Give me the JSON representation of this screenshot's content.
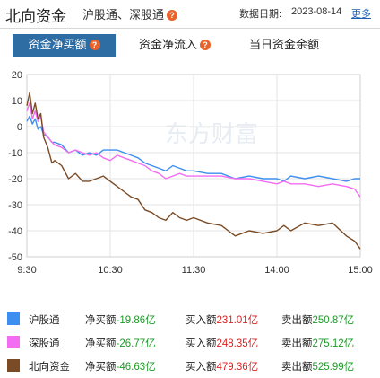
{
  "header": {
    "title": "北向资金",
    "subtitle": "沪股通、深股通",
    "help_glyph": "?",
    "date_label": "数据日期:",
    "date_value": "2023-08-14",
    "more_label": "更多"
  },
  "tabs": [
    {
      "label": "资金净买额",
      "active": true,
      "has_help": true
    },
    {
      "label": "资金净流入",
      "active": false,
      "has_help": true
    },
    {
      "label": "当日资金余额",
      "active": false,
      "has_help": false
    }
  ],
  "watermark": "东方财富",
  "colors": {
    "sh": "#3c8ef0",
    "sz": "#f26df2",
    "north": "#7a4b25",
    "accent": "#2e6da4"
  },
  "chart_data": {
    "type": "line",
    "x_tick_labels": [
      "9:30",
      "10:30",
      "11:30",
      "14:00",
      "15:00"
    ],
    "x_index_range": [
      0,
      240
    ],
    "x_tick_index": [
      0,
      60,
      120,
      180,
      240
    ],
    "y_ticks": [
      20,
      10,
      0,
      -10,
      -20,
      -30,
      -40,
      -50
    ],
    "ylim": [
      -50,
      20
    ],
    "grid": true,
    "series": [
      {
        "name": "沪股通",
        "color": "#3c8ef0",
        "points": [
          [
            0,
            2
          ],
          [
            2,
            4
          ],
          [
            4,
            1
          ],
          [
            6,
            3
          ],
          [
            8,
            -1
          ],
          [
            10,
            0
          ],
          [
            12,
            -3
          ],
          [
            15,
            -4
          ],
          [
            18,
            -6
          ],
          [
            20,
            -6
          ],
          [
            25,
            -7
          ],
          [
            30,
            -10
          ],
          [
            35,
            -9
          ],
          [
            40,
            -11
          ],
          [
            45,
            -10
          ],
          [
            50,
            -11
          ],
          [
            55,
            -9
          ],
          [
            60,
            -9
          ],
          [
            65,
            -9
          ],
          [
            70,
            -10
          ],
          [
            75,
            -11
          ],
          [
            80,
            -12
          ],
          [
            85,
            -14
          ],
          [
            90,
            -15
          ],
          [
            95,
            -16
          ],
          [
            100,
            -17
          ],
          [
            105,
            -15
          ],
          [
            110,
            -16
          ],
          [
            115,
            -17
          ],
          [
            120,
            -17
          ],
          [
            130,
            -18
          ],
          [
            140,
            -18
          ],
          [
            150,
            -20
          ],
          [
            160,
            -19
          ],
          [
            170,
            -20
          ],
          [
            180,
            -20
          ],
          [
            185,
            -21
          ],
          [
            190,
            -19
          ],
          [
            200,
            -20
          ],
          [
            210,
            -19
          ],
          [
            220,
            -20
          ],
          [
            230,
            -21
          ],
          [
            236,
            -20
          ],
          [
            240,
            -20
          ]
        ]
      },
      {
        "name": "深股通",
        "color": "#f26df2",
        "points": [
          [
            0,
            6
          ],
          [
            2,
            9
          ],
          [
            4,
            3
          ],
          [
            6,
            6
          ],
          [
            8,
            2
          ],
          [
            10,
            4
          ],
          [
            12,
            -2
          ],
          [
            15,
            -4
          ],
          [
            18,
            -6
          ],
          [
            20,
            -7
          ],
          [
            25,
            -8
          ],
          [
            30,
            -10
          ],
          [
            35,
            -9
          ],
          [
            40,
            -10
          ],
          [
            45,
            -11
          ],
          [
            50,
            -10
          ],
          [
            55,
            -12
          ],
          [
            60,
            -13
          ],
          [
            65,
            -11
          ],
          [
            70,
            -12
          ],
          [
            75,
            -13
          ],
          [
            80,
            -14
          ],
          [
            85,
            -15
          ],
          [
            90,
            -17
          ],
          [
            95,
            -18
          ],
          [
            100,
            -20
          ],
          [
            105,
            -19
          ],
          [
            110,
            -18
          ],
          [
            115,
            -19
          ],
          [
            120,
            -19
          ],
          [
            130,
            -19
          ],
          [
            140,
            -19
          ],
          [
            150,
            -20
          ],
          [
            160,
            -20
          ],
          [
            170,
            -21
          ],
          [
            180,
            -22
          ],
          [
            185,
            -21
          ],
          [
            190,
            -22
          ],
          [
            200,
            -22
          ],
          [
            210,
            -23
          ],
          [
            220,
            -22
          ],
          [
            230,
            -23
          ],
          [
            236,
            -24
          ],
          [
            240,
            -27
          ]
        ]
      },
      {
        "name": "北向资金",
        "color": "#7a4b25",
        "points": [
          [
            0,
            8
          ],
          [
            2,
            13
          ],
          [
            4,
            5
          ],
          [
            6,
            9
          ],
          [
            8,
            3
          ],
          [
            10,
            5
          ],
          [
            12,
            -4
          ],
          [
            15,
            -8
          ],
          [
            18,
            -14
          ],
          [
            20,
            -13
          ],
          [
            25,
            -15
          ],
          [
            30,
            -20
          ],
          [
            35,
            -18
          ],
          [
            40,
            -21
          ],
          [
            45,
            -21
          ],
          [
            50,
            -20
          ],
          [
            55,
            -19
          ],
          [
            60,
            -21
          ],
          [
            65,
            -23
          ],
          [
            70,
            -25
          ],
          [
            75,
            -27
          ],
          [
            80,
            -28
          ],
          [
            85,
            -32
          ],
          [
            90,
            -33
          ],
          [
            95,
            -35
          ],
          [
            100,
            -36
          ],
          [
            105,
            -33
          ],
          [
            110,
            -35
          ],
          [
            115,
            -36
          ],
          [
            120,
            -35
          ],
          [
            130,
            -37
          ],
          [
            140,
            -38
          ],
          [
            150,
            -42
          ],
          [
            160,
            -40
          ],
          [
            170,
            -41
          ],
          [
            180,
            -40
          ],
          [
            185,
            -38
          ],
          [
            190,
            -40
          ],
          [
            200,
            -37
          ],
          [
            210,
            -38
          ],
          [
            220,
            -37
          ],
          [
            230,
            -42
          ],
          [
            236,
            -44
          ],
          [
            240,
            -47
          ]
        ]
      }
    ]
  },
  "legend": {
    "net_label": "净买额",
    "buy_label": "买入额",
    "sell_label": "卖出额",
    "rows": [
      {
        "name": "沪股通",
        "net": "-19.86亿",
        "buy": "231.01亿",
        "sell": "250.87亿"
      },
      {
        "name": "深股通",
        "net": "-26.77亿",
        "buy": "248.35亿",
        "sell": "275.12亿"
      },
      {
        "name": "北向资金",
        "net": "-46.63亿",
        "buy": "479.36亿",
        "sell": "525.99亿"
      }
    ]
  }
}
